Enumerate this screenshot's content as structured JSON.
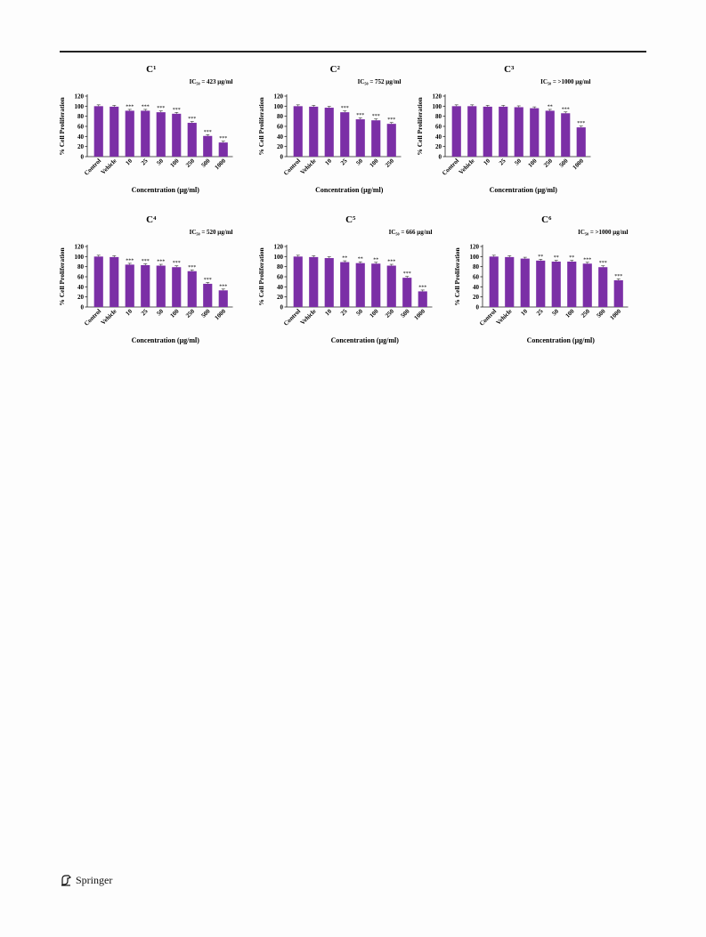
{
  "page": {
    "publisher": "Springer",
    "publisher_logo": "springer-horse-icon"
  },
  "chart_data": [
    {
      "type": "bar",
      "title": "C¹",
      "annotation": "IC₅₀ = 423 μg/ml",
      "xlabel": "Concentration (μg/ml)",
      "ylabel": "% Cell Proliferation",
      "ylim": [
        0,
        120
      ],
      "yticks": [
        "0",
        "20",
        "40",
        "60",
        "80",
        "100",
        "120"
      ],
      "categories": [
        "Control",
        "Vehicle",
        "10",
        "25",
        "50",
        "100",
        "250",
        "500",
        "1000"
      ],
      "values": [
        100,
        99,
        91,
        91,
        88,
        85,
        67,
        41,
        28
      ],
      "significance": [
        "",
        "",
        "***",
        "***",
        "***",
        "***",
        "***",
        "***",
        "***"
      ],
      "bar_color": "#7b2fa6",
      "grid": false
    },
    {
      "type": "bar",
      "title": "C²",
      "annotation": "IC₅₀ = 752 μg/ml",
      "xlabel": "Concentration (μg/ml)",
      "ylabel": "% Cell Proliferation",
      "ylim": [
        0,
        120
      ],
      "yticks": [
        "0",
        "20",
        "40",
        "60",
        "80",
        "100",
        "120"
      ],
      "categories": [
        "Control",
        "Vehicle",
        "10",
        "25",
        "50",
        "100",
        "250"
      ],
      "values": [
        100,
        99,
        97,
        88,
        74,
        72,
        65
      ],
      "significance": [
        "",
        "",
        "",
        "***",
        "***",
        "***",
        "***"
      ],
      "bar_color": "#7b2fa6",
      "grid": false
    },
    {
      "type": "bar",
      "title": "C³",
      "annotation": "IC₅₀ = >1000 μg/ml",
      "xlabel": "Concentration (μg/ml)",
      "ylabel": "% Cell Proliferation",
      "ylim": [
        0,
        120
      ],
      "yticks": [
        "0",
        "20",
        "40",
        "60",
        "80",
        "100",
        "120"
      ],
      "categories": [
        "Control",
        "Vehicle",
        "10",
        "25",
        "50",
        "100",
        "250",
        "500",
        "1000"
      ],
      "values": [
        100,
        100,
        99,
        99,
        98,
        96,
        91,
        86,
        58
      ],
      "significance": [
        "",
        "",
        "",
        "",
        "",
        "",
        "**",
        "***",
        "***"
      ],
      "bar_color": "#7b2fa6",
      "grid": false
    },
    {
      "type": "bar",
      "title": "C⁴",
      "annotation": "IC₅₀ = 520 μg/ml",
      "xlabel": "Concentration (μg/ml)",
      "ylabel": "% Cell Proliferation",
      "ylim": [
        0,
        120
      ],
      "yticks": [
        "0",
        "20",
        "40",
        "60",
        "80",
        "100",
        "120"
      ],
      "categories": [
        "Control",
        "Vehicle",
        "10",
        "25",
        "50",
        "100",
        "250",
        "500",
        "1000"
      ],
      "values": [
        100,
        99,
        84,
        83,
        82,
        79,
        71,
        46,
        33
      ],
      "significance": [
        "",
        "",
        "***",
        "***",
        "***",
        "***",
        "***",
        "***",
        "***"
      ],
      "bar_color": "#7b2fa6",
      "grid": false
    },
    {
      "type": "bar",
      "title": "C⁵",
      "annotation": "IC₅₀ = 666 μg/ml",
      "xlabel": "Concentration (μg/ml)",
      "ylabel": "% Cell Proliferation",
      "ylim": [
        0,
        120
      ],
      "yticks": [
        "0",
        "20",
        "40",
        "60",
        "80",
        "100",
        "120"
      ],
      "categories": [
        "Control",
        "Vehicle",
        "10",
        "25",
        "50",
        "100",
        "250",
        "500",
        "1000"
      ],
      "values": [
        100,
        99,
        97,
        89,
        87,
        86,
        82,
        58,
        31
      ],
      "significance": [
        "",
        "",
        "",
        "**",
        "**",
        "**",
        "***",
        "***",
        "***"
      ],
      "bar_color": "#7b2fa6",
      "grid": false
    },
    {
      "type": "bar",
      "title": "C⁶",
      "annotation": "IC₅₀ = >1000 μg/ml",
      "xlabel": "Concentration (μg/ml)",
      "ylabel": "% Cell Proliferation",
      "ylim": [
        0,
        120
      ],
      "yticks": [
        "0",
        "20",
        "40",
        "60",
        "80",
        "100",
        "120"
      ],
      "categories": [
        "Control",
        "Vehicle",
        "10",
        "25",
        "50",
        "100",
        "250",
        "500",
        "1000"
      ],
      "values": [
        100,
        99,
        96,
        92,
        90,
        90,
        86,
        79,
        53
      ],
      "significance": [
        "",
        "",
        "",
        "**",
        "**",
        "**",
        "***",
        "***",
        "***"
      ],
      "bar_color": "#7b2fa6",
      "grid": false
    }
  ]
}
